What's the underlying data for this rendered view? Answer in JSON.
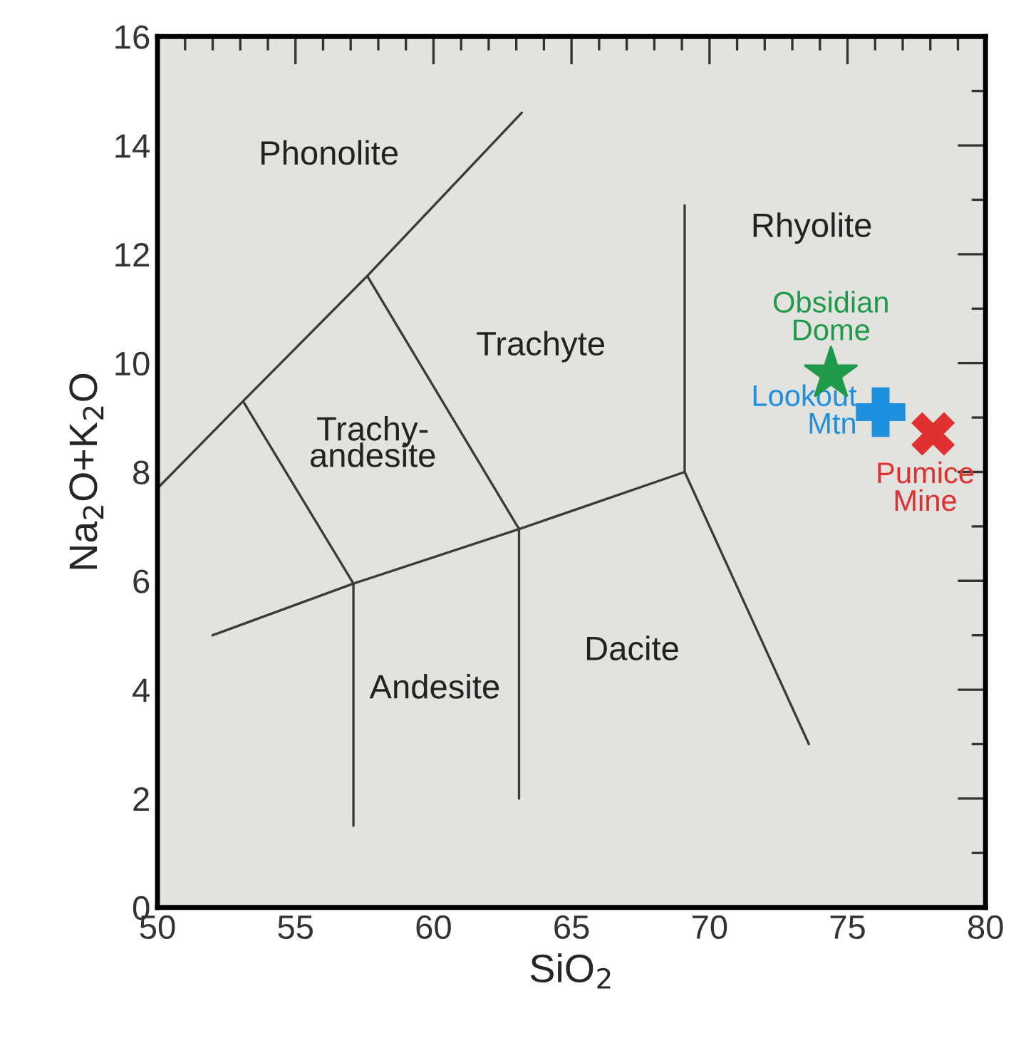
{
  "chart_data": {
    "type": "line",
    "xlabel": "SiO$_{2}$",
    "ylabel": "Na$_{2}$O+K$_{2}$O",
    "xlim": [
      50,
      80
    ],
    "ylim": [
      0,
      16
    ],
    "xticks": [
      50,
      {
        "value": 51,
        "label": null
      },
      {
        "value": 52,
        "label": null
      },
      {
        "value": 53,
        "label": null
      },
      {
        "value": 54,
        "label": null
      },
      55,
      {
        "value": 56,
        "label": null
      },
      {
        "value": 57,
        "label": null
      },
      {
        "value": 58,
        "label": null
      },
      {
        "value": 59,
        "label": null
      },
      60,
      {
        "value": 61,
        "label": null
      },
      {
        "value": 62,
        "label": null
      },
      {
        "value": 63,
        "label": null
      },
      {
        "value": 64,
        "label": null
      },
      65,
      {
        "value": 66,
        "label": null
      },
      {
        "value": 67,
        "label": null
      },
      {
        "value": 68,
        "label": null
      },
      {
        "value": 69,
        "label": null
      },
      70,
      {
        "value": 71,
        "label": null
      },
      {
        "value": 72,
        "label": null
      },
      {
        "value": 73,
        "label": null
      },
      {
        "value": 74,
        "label": null
      },
      75,
      {
        "value": 76,
        "label": null
      },
      {
        "value": 77,
        "label": null
      },
      {
        "value": 78,
        "label": null
      },
      {
        "value": 79,
        "label": null
      },
      80
    ],
    "yticks": [
      0,
      {
        "value": 1,
        "label": null
      },
      2,
      {
        "value": 3,
        "label": null
      },
      4,
      {
        "value": 5,
        "label": null
      },
      6,
      {
        "value": 7,
        "label": null
      },
      8,
      {
        "value": 9,
        "label": null
      },
      10,
      {
        "value": 11,
        "label": null
      },
      12,
      {
        "value": 13,
        "label": null
      },
      14,
      {
        "value": 15,
        "label": null
      },
      16
    ],
    "grid": false,
    "legend": false,
    "series": [
      {
        "color": "#3a3a3a",
        "x": [
          50,
          53.1,
          57.6,
          63.2
        ],
        "values": [
          7.7,
          9.3,
          11.6,
          14.6
        ]
      },
      {
        "color": "#3a3a3a",
        "x": [
          53.1,
          57.1,
          57.1
        ],
        "values": [
          9.3,
          5.95,
          1.5
        ]
      },
      {
        "color": "#3a3a3a",
        "x": [
          57.6,
          63.1,
          63.1
        ],
        "values": [
          11.6,
          6.95,
          2.0
        ]
      },
      {
        "color": "#3a3a3a",
        "x": [
          52,
          57.1,
          63.1,
          69.1,
          73.6
        ],
        "values": [
          5.0,
          5.95,
          6.95,
          8.0,
          3.0
        ]
      },
      {
        "color": "#3a3a3a",
        "x": [
          69.1,
          69.1
        ],
        "values": [
          8.0,
          12.9
        ]
      },
      {
        "type": "scatter",
        "name": "Obsidian Dome",
        "color": "#1e9a4a",
        "marker": "star",
        "x": [
          74.4
        ],
        "values": [
          9.8
        ]
      },
      {
        "type": "scatter",
        "name": "Lookout Mtn",
        "color": "#1f8fe0",
        "marker": "cross",
        "x": [
          76.2
        ],
        "values": [
          9.1
        ]
      },
      {
        "type": "scatter",
        "name": "Pumice Mine",
        "color": "#e03030",
        "marker": "x",
        "x": [
          78.1
        ],
        "values": [
          8.7
        ]
      }
    ],
    "annotations": [
      "Phonolite",
      "Trachyte",
      "Trachy-\nandesite",
      "Rhyolite",
      "Andesite",
      "Dacite"
    ]
  }
}
